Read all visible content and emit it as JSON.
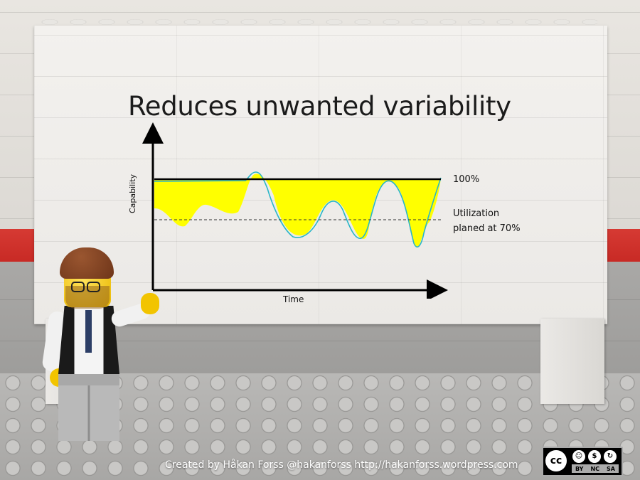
{
  "slide": {
    "title": "Reduces unwanted variability",
    "chart_labels": {
      "top_line": "100%",
      "threshold_line1": "Utilization",
      "threshold_line2": "planed at 70%",
      "x_axis": "Time",
      "y_axis": "Capability"
    },
    "colors": {
      "fill": "#ffff00",
      "curve": "#29b6c8",
      "axis": "#000000"
    }
  },
  "footer": {
    "credit": "Created by Håkan Forss @hakanforss http://hakanforss.wordpress.com",
    "license": {
      "cc": "cc",
      "by": "BY",
      "nc": "NC",
      "sa": "SA"
    }
  }
}
